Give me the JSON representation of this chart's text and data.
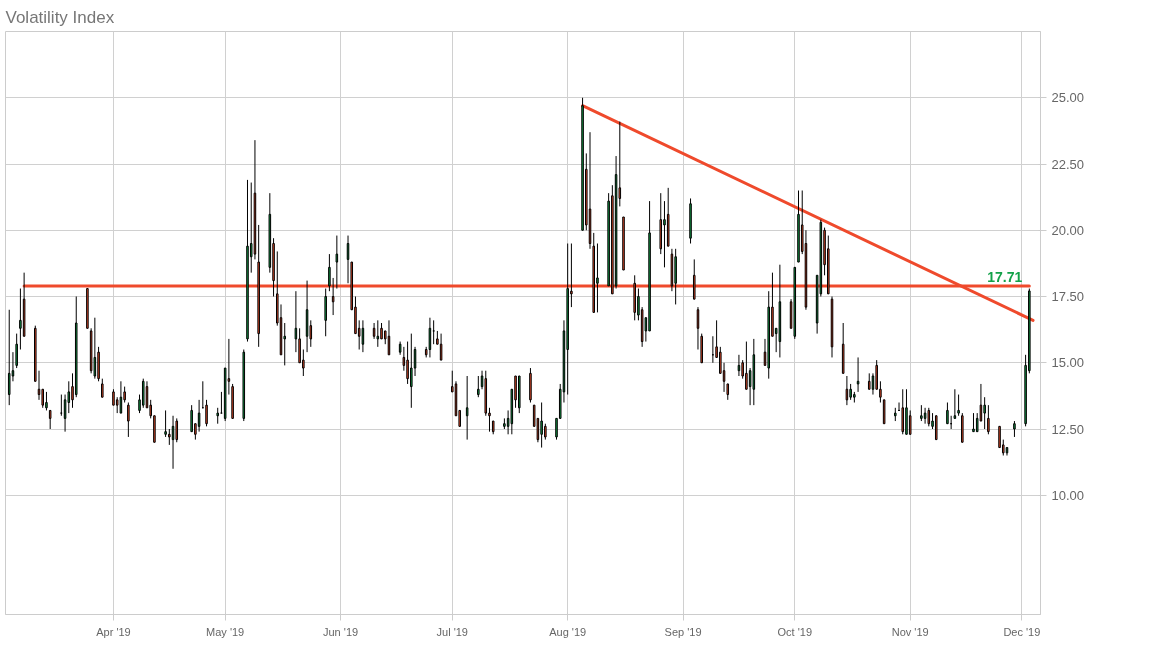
{
  "chart_data": {
    "type": "candlestick",
    "title": "Volatility Index",
    "x": [
      "2019-03-04",
      "2019-03-05",
      "2019-03-06",
      "2019-03-07",
      "2019-03-08",
      "2019-03-11",
      "2019-03-12",
      "2019-03-13",
      "2019-03-14",
      "2019-03-15",
      "2019-03-18",
      "2019-03-19",
      "2019-03-20",
      "2019-03-21",
      "2019-03-22",
      "2019-03-25",
      "2019-03-26",
      "2019-03-27",
      "2019-03-28",
      "2019-03-29",
      "2019-04-01",
      "2019-04-02",
      "2019-04-03",
      "2019-04-04",
      "2019-04-05",
      "2019-04-08",
      "2019-04-09",
      "2019-04-10",
      "2019-04-11",
      "2019-04-12",
      "2019-04-15",
      "2019-04-16",
      "2019-04-17",
      "2019-04-18",
      "2019-04-22",
      "2019-04-23",
      "2019-04-24",
      "2019-04-25",
      "2019-04-26",
      "2019-04-29",
      "2019-04-30",
      "2019-05-01",
      "2019-05-02",
      "2019-05-03",
      "2019-05-06",
      "2019-05-07",
      "2019-05-08",
      "2019-05-09",
      "2019-05-10",
      "2019-05-13",
      "2019-05-14",
      "2019-05-15",
      "2019-05-16",
      "2019-05-17",
      "2019-05-20",
      "2019-05-21",
      "2019-05-22",
      "2019-05-23",
      "2019-05-24",
      "2019-05-28",
      "2019-05-29",
      "2019-05-30",
      "2019-05-31",
      "2019-06-03",
      "2019-06-04",
      "2019-06-05",
      "2019-06-06",
      "2019-06-07",
      "2019-06-10",
      "2019-06-11",
      "2019-06-12",
      "2019-06-13",
      "2019-06-14",
      "2019-06-17",
      "2019-06-18",
      "2019-06-19",
      "2019-06-20",
      "2019-06-21",
      "2019-06-24",
      "2019-06-25",
      "2019-06-26",
      "2019-06-27",
      "2019-06-28",
      "2019-07-01",
      "2019-07-02",
      "2019-07-03",
      "2019-07-05",
      "2019-07-08",
      "2019-07-09",
      "2019-07-10",
      "2019-07-11",
      "2019-07-12",
      "2019-07-15",
      "2019-07-16",
      "2019-07-17",
      "2019-07-18",
      "2019-07-19",
      "2019-07-22",
      "2019-07-23",
      "2019-07-24",
      "2019-07-25",
      "2019-07-26",
      "2019-07-29",
      "2019-07-30",
      "2019-07-31",
      "2019-08-01",
      "2019-08-02",
      "2019-08-05",
      "2019-08-06",
      "2019-08-07",
      "2019-08-08",
      "2019-08-09",
      "2019-08-12",
      "2019-08-13",
      "2019-08-14",
      "2019-08-15",
      "2019-08-16",
      "2019-08-19",
      "2019-08-20",
      "2019-08-21",
      "2019-08-22",
      "2019-08-23",
      "2019-08-26",
      "2019-08-27",
      "2019-08-28",
      "2019-08-29",
      "2019-08-30",
      "2019-09-03",
      "2019-09-04",
      "2019-09-05",
      "2019-09-06",
      "2019-09-09",
      "2019-09-10",
      "2019-09-11",
      "2019-09-12",
      "2019-09-13",
      "2019-09-16",
      "2019-09-17",
      "2019-09-18",
      "2019-09-19",
      "2019-09-20",
      "2019-09-23",
      "2019-09-24",
      "2019-09-25",
      "2019-09-26",
      "2019-09-27",
      "2019-09-30",
      "2019-10-01",
      "2019-10-02",
      "2019-10-03",
      "2019-10-04",
      "2019-10-07",
      "2019-10-08",
      "2019-10-09",
      "2019-10-10",
      "2019-10-11",
      "2019-10-14",
      "2019-10-15",
      "2019-10-16",
      "2019-10-17",
      "2019-10-18",
      "2019-10-21",
      "2019-10-22",
      "2019-10-23",
      "2019-10-24",
      "2019-10-25",
      "2019-10-28",
      "2019-10-29",
      "2019-10-30",
      "2019-10-31",
      "2019-11-01",
      "2019-11-04",
      "2019-11-05",
      "2019-11-06",
      "2019-11-07",
      "2019-11-08",
      "2019-11-11",
      "2019-11-12",
      "2019-11-13",
      "2019-11-14",
      "2019-11-15",
      "2019-11-18",
      "2019-11-19",
      "2019-11-20",
      "2019-11-21",
      "2019-11-22",
      "2019-11-25",
      "2019-11-26",
      "2019-11-27",
      "2019-11-29",
      "2019-12-02",
      "2019-12-03"
    ],
    "ohlc": [
      [
        13.8,
        17.0,
        13.4,
        14.6
      ],
      [
        14.5,
        15.4,
        14.3,
        14.7
      ],
      [
        14.9,
        16.1,
        14.8,
        15.7
      ],
      [
        16.3,
        17.8,
        15.5,
        16.6
      ],
      [
        17.4,
        18.4,
        16.0,
        16.0
      ],
      [
        16.3,
        16.4,
        14.3,
        14.3
      ],
      [
        14.0,
        14.7,
        13.6,
        13.8
      ],
      [
        14.0,
        14.0,
        13.3,
        13.4
      ],
      [
        13.3,
        13.9,
        13.2,
        13.5
      ],
      [
        13.2,
        13.2,
        12.5,
        12.9
      ],
      [
        13.1,
        13.8,
        13.0,
        13.1
      ],
      [
        12.9,
        13.8,
        12.4,
        13.6
      ],
      [
        13.5,
        14.3,
        13.1,
        13.9
      ],
      [
        14.1,
        14.6,
        13.3,
        13.6
      ],
      [
        13.8,
        17.5,
        13.7,
        16.5
      ],
      [
        17.8,
        17.8,
        16.3,
        16.3
      ],
      [
        16.2,
        16.3,
        14.6,
        14.7
      ],
      [
        14.5,
        16.7,
        14.4,
        15.2
      ],
      [
        15.4,
        15.6,
        14.3,
        14.4
      ],
      [
        14.2,
        14.4,
        13.7,
        13.7
      ],
      [
        13.9,
        14.0,
        13.4,
        13.4
      ],
      [
        13.6,
        13.7,
        13.1,
        13.4
      ],
      [
        13.1,
        14.3,
        13.1,
        13.7
      ],
      [
        13.9,
        14.1,
        13.5,
        13.6
      ],
      [
        13.4,
        13.5,
        12.2,
        12.8
      ],
      [
        13.2,
        13.8,
        13.1,
        13.6
      ],
      [
        13.4,
        14.4,
        13.3,
        14.3
      ],
      [
        14.1,
        14.3,
        13.3,
        13.3
      ],
      [
        13.4,
        13.6,
        12.9,
        13.0
      ],
      [
        13.0,
        13.0,
        12.0,
        12.0
      ],
      [
        12.3,
        13.2,
        12.2,
        12.4
      ],
      [
        12.3,
        12.5,
        11.9,
        12.2
      ],
      [
        12.1,
        13.0,
        11.0,
        12.6
      ],
      [
        12.8,
        12.9,
        12.0,
        12.1
      ],
      [
        12.4,
        13.4,
        12.4,
        13.2
      ],
      [
        12.7,
        12.7,
        12.1,
        12.3
      ],
      [
        12.6,
        13.6,
        12.4,
        13.1
      ],
      [
        13.3,
        14.3,
        13.3,
        13.3
      ],
      [
        13.4,
        13.6,
        12.6,
        12.7
      ],
      [
        13.0,
        13.3,
        12.7,
        13.1
      ],
      [
        13.1,
        13.9,
        13.1,
        13.1
      ],
      [
        12.9,
        14.8,
        12.8,
        14.8
      ],
      [
        14.4,
        15.9,
        13.8,
        14.3
      ],
      [
        14.1,
        14.2,
        12.9,
        12.9
      ],
      [
        12.9,
        15.5,
        12.8,
        15.4
      ],
      [
        15.9,
        21.9,
        15.8,
        19.4
      ],
      [
        19.0,
        21.8,
        18.4,
        19.5
      ],
      [
        21.4,
        23.4,
        18.9,
        19.1
      ],
      [
        18.8,
        20.2,
        15.6,
        16.1
      ],
      [
        18.6,
        21.4,
        18.4,
        20.6
      ],
      [
        19.5,
        19.7,
        17.5,
        18.1
      ],
      [
        17.6,
        19.2,
        16.4,
        16.5
      ],
      [
        16.7,
        17.2,
        15.3,
        15.3
      ],
      [
        15.9,
        16.5,
        14.9,
        16.0
      ],
      [
        15.9,
        17.7,
        15.4,
        16.3
      ],
      [
        15.9,
        16.3,
        15.0,
        15.0
      ],
      [
        15.1,
        15.5,
        14.5,
        14.8
      ],
      [
        16.0,
        18.1,
        15.4,
        17.0
      ],
      [
        16.4,
        16.6,
        15.6,
        15.9
      ],
      [
        16.6,
        17.8,
        16.0,
        17.5
      ],
      [
        17.9,
        19.1,
        17.7,
        18.6
      ],
      [
        17.5,
        18.2,
        16.8,
        17.3
      ],
      [
        18.8,
        19.8,
        17.8,
        19.1
      ],
      [
        18.9,
        19.8,
        18.0,
        19.5
      ],
      [
        18.8,
        18.8,
        17.0,
        17.0
      ],
      [
        17.1,
        17.5,
        16.1,
        16.1
      ],
      [
        16.3,
        16.6,
        15.5,
        16.0
      ],
      [
        15.7,
        16.6,
        15.4,
        16.3
      ],
      [
        16.3,
        16.5,
        15.9,
        16.0
      ],
      [
        15.9,
        16.6,
        15.6,
        16.0
      ],
      [
        16.3,
        16.5,
        15.9,
        15.9
      ],
      [
        16.2,
        16.2,
        15.7,
        15.9
      ],
      [
        16.0,
        16.6,
        15.3,
        15.3
      ],
      [
        15.4,
        15.8,
        15.3,
        15.7
      ],
      [
        15.2,
        15.6,
        14.7,
        14.9
      ],
      [
        15.1,
        15.8,
        14.2,
        14.4
      ],
      [
        14.1,
        16.1,
        13.3,
        14.8
      ],
      [
        14.8,
        15.6,
        14.5,
        15.5
      ],
      [
        15.5,
        15.6,
        15.2,
        15.3
      ],
      [
        15.5,
        16.7,
        15.2,
        16.3
      ],
      [
        16.2,
        16.6,
        15.7,
        16.2
      ],
      [
        15.9,
        16.2,
        15.7,
        15.7
      ],
      [
        15.7,
        16.1,
        15.1,
        15.1
      ],
      [
        14.1,
        14.7,
        13.9,
        13.9
      ],
      [
        14.2,
        14.3,
        13.0,
        13.0
      ],
      [
        13.2,
        13.2,
        12.6,
        12.6
      ],
      [
        13.0,
        14.5,
        12.1,
        13.3
      ],
      [
        13.8,
        14.5,
        13.7,
        14.0
      ],
      [
        14.1,
        14.7,
        14.0,
        14.5
      ],
      [
        14.4,
        14.7,
        13.0,
        13.1
      ],
      [
        13.1,
        13.3,
        12.4,
        13.0
      ],
      [
        12.8,
        12.8,
        12.3,
        12.4
      ],
      [
        12.6,
        12.9,
        12.5,
        12.7
      ],
      [
        12.6,
        13.2,
        12.3,
        12.9
      ],
      [
        12.7,
        14.0,
        12.3,
        14.0
      ],
      [
        14.5,
        14.5,
        13.3,
        13.6
      ],
      [
        13.3,
        14.5,
        13.1,
        14.5
      ],
      [
        14.6,
        14.8,
        13.5,
        13.6
      ],
      [
        13.4,
        13.4,
        12.6,
        12.6
      ],
      [
        12.9,
        12.9,
        12.0,
        12.1
      ],
      [
        12.3,
        13.5,
        11.8,
        12.8
      ],
      [
        12.6,
        12.7,
        12.1,
        12.2
      ],
      [
        12.2,
        12.9,
        12.1,
        12.9
      ],
      [
        12.9,
        14.2,
        12.9,
        14.0
      ],
      [
        13.9,
        16.6,
        13.5,
        16.2
      ],
      [
        15.5,
        19.5,
        13.8,
        17.8
      ],
      [
        17.7,
        19.5,
        17.1,
        17.6
      ],
      [
        20.0,
        25.0,
        20.0,
        24.7
      ],
      [
        22.3,
        22.9,
        20.0,
        20.2
      ],
      [
        20.8,
        23.7,
        19.3,
        19.5
      ],
      [
        19.4,
        19.9,
        16.9,
        16.9
      ],
      [
        18.0,
        19.5,
        16.9,
        18.2
      ],
      [
        17.9,
        21.4,
        17.9,
        21.1
      ],
      [
        21.3,
        21.7,
        17.6,
        17.6
      ],
      [
        17.9,
        22.8,
        17.8,
        22.1
      ],
      [
        21.6,
        24.1,
        20.9,
        21.2
      ],
      [
        20.5,
        20.5,
        18.5,
        18.5
      ],
      [
        18.0,
        18.3,
        16.6,
        16.9
      ],
      [
        16.8,
        17.8,
        16.6,
        17.5
      ],
      [
        17.0,
        17.1,
        15.6,
        15.8
      ],
      [
        16.2,
        16.7,
        15.8,
        16.7
      ],
      [
        16.2,
        21.1,
        16.2,
        19.9
      ],
      [
        20.4,
        21.4,
        19.1,
        19.3
      ],
      [
        20.2,
        21.1,
        18.6,
        20.4
      ],
      [
        20.6,
        21.6,
        19.4,
        19.4
      ],
      [
        19.1,
        19.3,
        17.7,
        17.9
      ],
      [
        18.0,
        19.3,
        17.2,
        19.0
      ],
      [
        19.7,
        21.2,
        19.5,
        21.0
      ],
      [
        18.3,
        18.9,
        17.4,
        17.4
      ],
      [
        17.0,
        17.1,
        15.5,
        16.3
      ],
      [
        16.0,
        16.1,
        15.0,
        15.0
      ],
      [
        15.3,
        16.0,
        15.0,
        15.3
      ],
      [
        15.6,
        16.6,
        15.2,
        15.2
      ],
      [
        15.4,
        15.6,
        14.6,
        14.6
      ],
      [
        14.7,
        15.0,
        13.9,
        14.3
      ],
      [
        14.2,
        14.2,
        13.6,
        13.8
      ],
      [
        14.7,
        15.3,
        14.5,
        14.9
      ],
      [
        15.0,
        15.1,
        14.4,
        14.5
      ],
      [
        14.6,
        15.8,
        14.0,
        14.0
      ],
      [
        14.1,
        14.8,
        13.4,
        14.7
      ],
      [
        14.0,
        15.9,
        13.4,
        15.3
      ],
      [
        15.4,
        15.9,
        14.9,
        14.9
      ],
      [
        14.8,
        17.7,
        14.4,
        17.1
      ],
      [
        17.1,
        18.4,
        16.0,
        16.0
      ],
      [
        16.1,
        16.3,
        15.4,
        16.3
      ],
      [
        15.8,
        18.7,
        15.2,
        17.3
      ],
      [
        17.3,
        17.4,
        16.3,
        16.3
      ],
      [
        16.0,
        18.6,
        15.9,
        18.6
      ],
      [
        18.8,
        21.5,
        18.8,
        20.6
      ],
      [
        20.2,
        21.5,
        19.1,
        19.2
      ],
      [
        19.5,
        20.0,
        17.0,
        17.1
      ],
      [
        16.5,
        18.3,
        16.1,
        18.3
      ],
      [
        17.6,
        20.4,
        17.5,
        20.3
      ],
      [
        20.0,
        20.1,
        18.3,
        18.7
      ],
      [
        19.3,
        19.8,
        17.6,
        17.6
      ],
      [
        17.4,
        17.5,
        15.2,
        15.6
      ],
      [
        15.7,
        16.5,
        14.6,
        14.6
      ],
      [
        14.0,
        14.5,
        13.4,
        13.6
      ],
      [
        13.7,
        14.2,
        13.6,
        14.0
      ],
      [
        13.7,
        13.9,
        13.5,
        13.8
      ],
      [
        14.2,
        15.2,
        13.9,
        14.3
      ],
      [
        14.3,
        14.6,
        14.0,
        14.0
      ],
      [
        14.0,
        14.6,
        13.8,
        14.5
      ],
      [
        14.9,
        15.1,
        14.0,
        14.0
      ],
      [
        14.0,
        14.3,
        13.5,
        13.7
      ],
      [
        13.6,
        13.6,
        12.7,
        12.7
      ],
      [
        13.0,
        13.3,
        12.8,
        13.1
      ],
      [
        13.2,
        13.5,
        13.2,
        13.2
      ],
      [
        13.3,
        14.0,
        12.3,
        12.4
      ],
      [
        12.3,
        14.0,
        12.3,
        13.3
      ],
      [
        13.0,
        13.2,
        12.3,
        12.3
      ],
      [
        12.9,
        13.4,
        12.8,
        13.0
      ],
      [
        12.9,
        13.3,
        12.7,
        13.1
      ],
      [
        13.2,
        13.3,
        12.6,
        12.7
      ],
      [
        12.6,
        13.1,
        12.5,
        12.8
      ],
      [
        13.0,
        13.0,
        12.1,
        12.1
      ],
      [
        12.7,
        13.5,
        12.7,
        13.2
      ],
      [
        12.7,
        13.0,
        12.5,
        12.7
      ],
      [
        12.9,
        14.0,
        12.9,
        13.0
      ],
      [
        13.1,
        13.8,
        13.0,
        13.2
      ],
      [
        13.0,
        13.1,
        12.0,
        12.0
      ],
      [
        12.4,
        13.1,
        12.4,
        12.5
      ],
      [
        12.4,
        13.1,
        12.4,
        12.9
      ],
      [
        13.4,
        14.2,
        12.8,
        12.8
      ],
      [
        13.1,
        13.7,
        12.5,
        13.4
      ],
      [
        12.9,
        13.4,
        12.3,
        12.4
      ],
      [
        12.6,
        12.6,
        11.8,
        11.8
      ],
      [
        11.9,
        12.1,
        11.5,
        11.6
      ],
      [
        11.6,
        11.8,
        11.5,
        11.8
      ],
      [
        12.5,
        12.8,
        12.2,
        12.7
      ],
      [
        12.7,
        15.3,
        12.6,
        14.9
      ],
      [
        14.7,
        17.8,
        14.6,
        17.71
      ]
    ],
    "series": [
      {
        "type": "line",
        "color": "#ef4a2c",
        "x": [
          "2019-03-08",
          "2019-12-03"
        ],
        "values": [
          17.9,
          17.9
        ]
      },
      {
        "type": "line",
        "color": "#ef4a2c",
        "x": [
          "2019-08-05",
          "2019-12-04"
        ],
        "values": [
          24.7,
          16.6
        ]
      }
    ],
    "annotations": [
      {
        "text": "17.71",
        "x": "2019-12-03",
        "y": 17.71
      }
    ],
    "xlim": [
      "2019-03-03",
      "2019-12-06"
    ],
    "xticks": [
      {
        "value": "2019-04-01",
        "label": "Apr '19"
      },
      {
        "value": "2019-05-01",
        "label": "May '19"
      },
      {
        "value": "2019-06-01",
        "label": "Jun '19"
      },
      {
        "value": "2019-07-01",
        "label": "Jul '19"
      },
      {
        "value": "2019-08-01",
        "label": "Aug '19"
      },
      {
        "value": "2019-09-01",
        "label": "Sep '19"
      },
      {
        "value": "2019-10-01",
        "label": "Oct '19"
      },
      {
        "value": "2019-11-01",
        "label": "Nov '19"
      },
      {
        "value": "2019-12-01",
        "label": "Dec '19"
      }
    ],
    "ylim": [
      5.5,
      27.5
    ],
    "yticks": [
      {
        "value": 10,
        "label": "10.00"
      },
      {
        "value": 12.5,
        "label": "12.50"
      },
      {
        "value": 15,
        "label": "15.00"
      },
      {
        "value": 17.5,
        "label": "17.50"
      },
      {
        "value": 20,
        "label": "20.00"
      },
      {
        "value": 22.5,
        "label": "22.50"
      },
      {
        "value": 25,
        "label": "25.00"
      }
    ],
    "grid": true
  }
}
